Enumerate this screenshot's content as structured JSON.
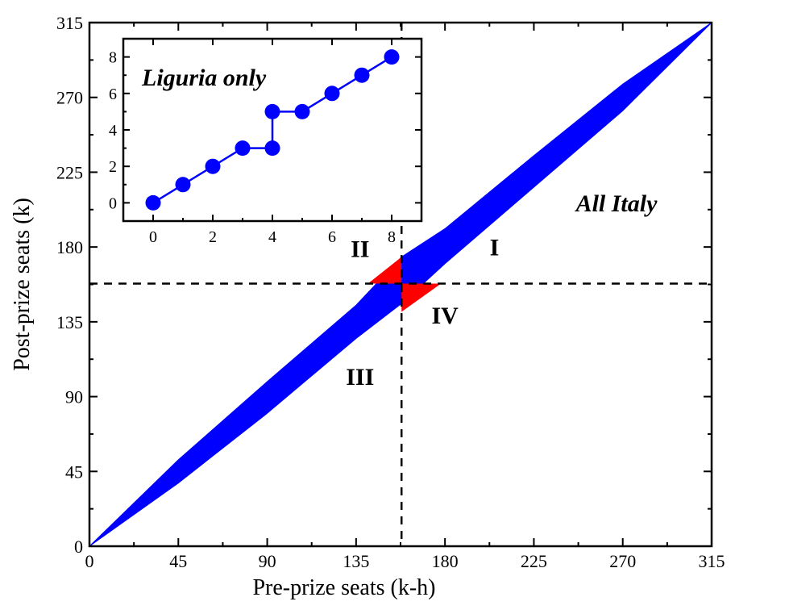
{
  "chart_data": [
    {
      "type": "area",
      "xlabel": "Pre-prize seats (k-h)",
      "ylabel": "Post-prize seats (k)",
      "xlim": [
        0,
        315
      ],
      "ylim": [
        0,
        315
      ],
      "xticks": [
        0,
        45,
        90,
        135,
        180,
        225,
        270,
        315
      ],
      "yticks": [
        0,
        45,
        90,
        135,
        180,
        225,
        270,
        315
      ],
      "xtick_labels": [
        "0",
        "45",
        "90",
        "135",
        "180",
        "225",
        "270",
        "315"
      ],
      "ytick_labels": [
        "0",
        "45",
        "90",
        "135",
        "180",
        "225",
        "270",
        "315"
      ],
      "threshold": {
        "x": 158,
        "y": 158,
        "style": "dashed"
      },
      "series": [
        {
          "color": "#0000ff",
          "band": [
            [
              0,
              0,
              0
            ],
            [
              45,
              38,
              52
            ],
            [
              90,
              80,
              99
            ],
            [
              135,
              125,
              145
            ],
            [
              158,
              146,
              174
            ],
            [
              180,
              170,
              191
            ],
            [
              225,
              216,
              235
            ],
            [
              270,
              262,
              278
            ],
            [
              315,
              315,
              315
            ]
          ]
        }
      ],
      "highlight": [
        {
          "color": "#ff0000",
          "polygon": [
            [
              141,
              158
            ],
            [
              158,
              174
            ],
            [
              158,
              158
            ]
          ]
        },
        {
          "color": "#ff0000",
          "polygon": [
            [
              158,
              158
            ],
            [
              158,
              141
            ],
            [
              178,
              158
            ]
          ]
        }
      ],
      "region_labels": [
        {
          "text": "I",
          "x": 205,
          "y": 175
        },
        {
          "text": "II",
          "x": 137,
          "y": 174
        },
        {
          "text": "III",
          "x": 137,
          "y": 97
        },
        {
          "text": "IV",
          "x": 180,
          "y": 134
        }
      ],
      "annotation": "All Italy"
    },
    {
      "type": "line",
      "inset": true,
      "title": "Liguria only",
      "xlim": [
        -1,
        9
      ],
      "ylim": [
        -1,
        9
      ],
      "xticks": [
        0,
        2,
        4,
        6,
        8
      ],
      "yticks": [
        0,
        2,
        4,
        6,
        8
      ],
      "xtick_labels": [
        "0",
        "2",
        "4",
        "6",
        "8"
      ],
      "ytick_labels": [
        "0",
        "2",
        "4",
        "6",
        "8"
      ],
      "series": [
        {
          "color": "#0000ff",
          "points": [
            [
              0,
              0
            ],
            [
              1,
              1
            ],
            [
              2,
              2
            ],
            [
              3,
              3
            ],
            [
              4,
              3
            ],
            [
              4,
              5
            ],
            [
              5,
              5
            ],
            [
              6,
              6
            ],
            [
              7,
              7
            ],
            [
              8,
              8
            ]
          ]
        }
      ]
    }
  ]
}
